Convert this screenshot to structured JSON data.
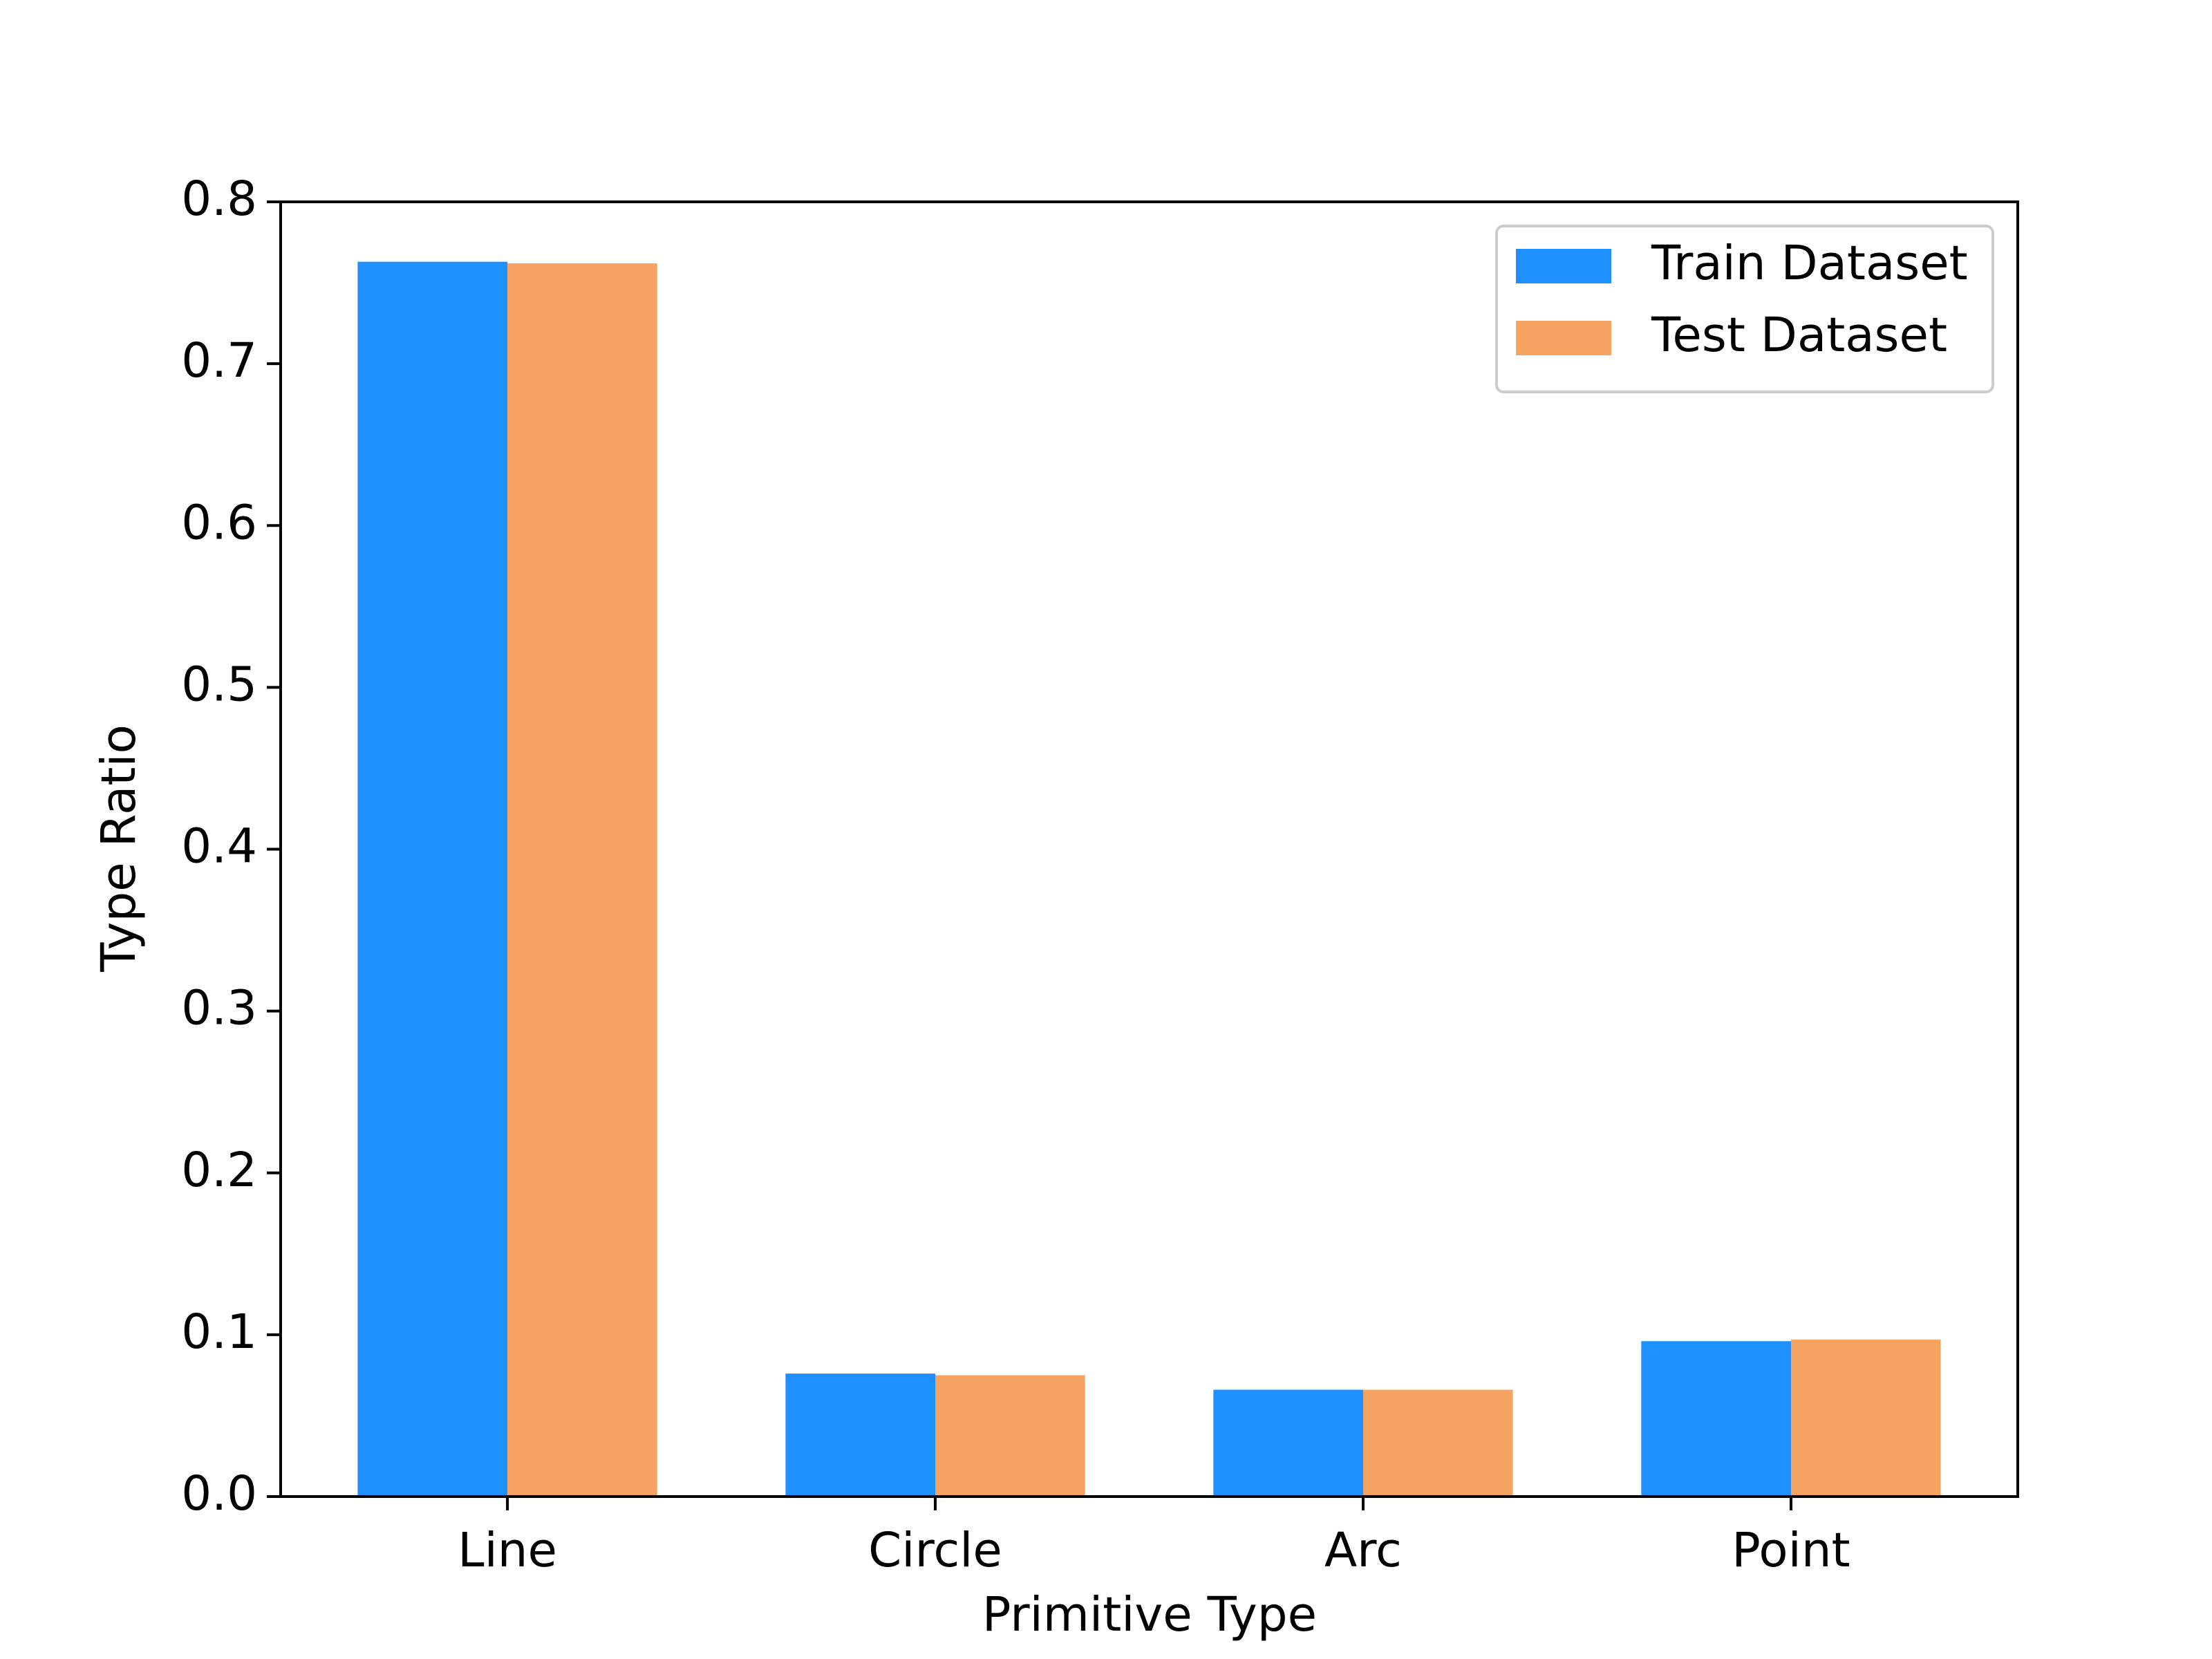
{
  "chart_data": {
    "type": "bar",
    "x_label": "Primitive Type",
    "y_label": "Type Ratio",
    "categories": [
      "Line",
      "Circle",
      "Arc",
      "Point"
    ],
    "series": [
      {
        "name": "Train Dataset",
        "color": "#1e90ff",
        "values": [
          0.763,
          0.076,
          0.066,
          0.096
        ]
      },
      {
        "name": "Test Dataset",
        "color": "#f4a460",
        "values": [
          0.762,
          0.075,
          0.066,
          0.097
        ]
      }
    ],
    "ylim": [
      0,
      0.8
    ],
    "yticks": [
      {
        "value": 0,
        "label": "0.0"
      },
      0.1,
      0.2,
      0.3,
      0.4,
      0.5,
      0.6,
      0.7,
      0.8
    ],
    "grid": false,
    "legend": "upper right"
  }
}
